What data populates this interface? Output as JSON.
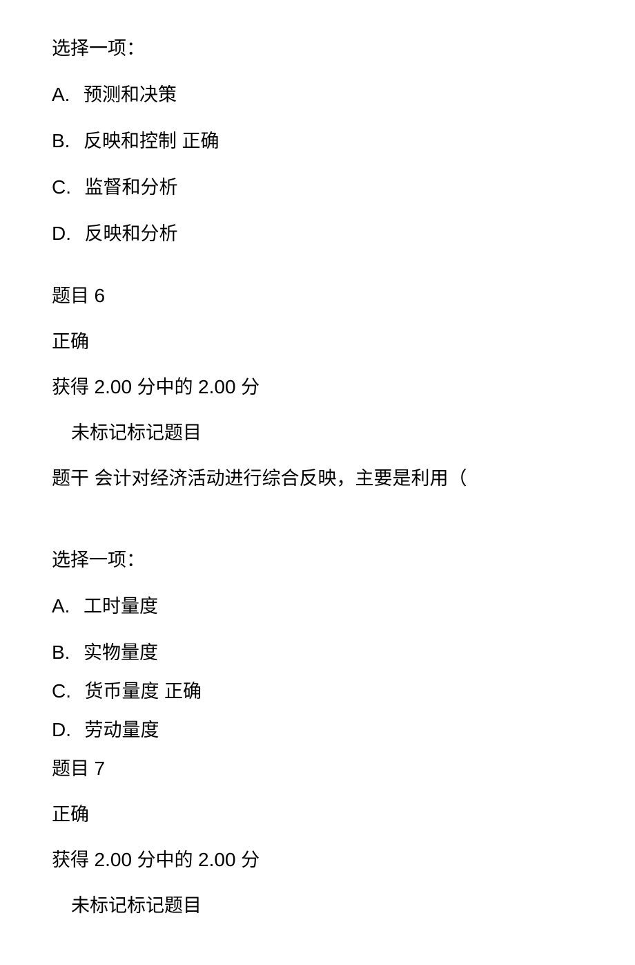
{
  "text_color": "#000000",
  "background_color": "#ffffff",
  "base_font_size": 27,
  "letter_font_size": 28,
  "q5": {
    "prompt": "选择一项：",
    "options": [
      {
        "letter": "A.",
        "text": "预测和决策"
      },
      {
        "letter": "B.",
        "text": "反映和控制 正确"
      },
      {
        "letter": "C.",
        "text": "监督和分析"
      },
      {
        "letter": "D.",
        "text": "反映和分析"
      }
    ]
  },
  "q6": {
    "header_label": "题目",
    "header_num": "6",
    "status": "正确",
    "score_prefix": "获得",
    "score_obtained": "2.00",
    "score_mid": "分中的",
    "score_total": "2.00",
    "score_suffix": "分",
    "flag": "未标记标记题目",
    "stem_label": "题干",
    "stem_text": "会计对经济活动进行综合反映，主要是利用（",
    "prompt": "选择一项：",
    "options": [
      {
        "letter": "A.",
        "text": "工时量度"
      },
      {
        "letter": "B.",
        "text": "实物量度"
      },
      {
        "letter": "C.",
        "text": "货币量度 正确"
      },
      {
        "letter": "D.",
        "text": "劳动量度"
      }
    ]
  },
  "q7": {
    "header_label": "题目",
    "header_num": "7",
    "status": "正确",
    "score_prefix": "获得",
    "score_obtained": "2.00",
    "score_mid": "分中的",
    "score_total": "2.00",
    "score_suffix": "分",
    "flag": "未标记标记题目"
  }
}
